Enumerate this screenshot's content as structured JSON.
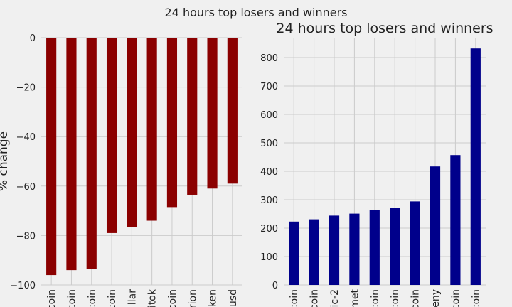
{
  "figure": {
    "suptitle": "24 hours top losers and winners"
  },
  "chart_data": [
    {
      "type": "bar",
      "title": "",
      "xlabel": "",
      "ylabel": "% change",
      "ylim": [
        -100,
        0
      ],
      "yticks": [
        0,
        -20,
        -40,
        -60,
        -80,
        -100
      ],
      "tick_labels": [
        "−100",
        "−80",
        "−60",
        "−40",
        "−20",
        "0"
      ],
      "categories": [
        "coin",
        "coin",
        "coin",
        "coin",
        "llar",
        "itok",
        "coin",
        "rion",
        "ken",
        "usd"
      ],
      "values": [
        -96,
        -94,
        -93.5,
        -79,
        -76.5,
        -74,
        -68.5,
        -63.5,
        -61,
        -59
      ],
      "color": "#8b0000",
      "grid": true
    },
    {
      "type": "bar",
      "title": "24 hours top losers and winners",
      "xlabel": "",
      "ylabel": "",
      "ylim": [
        0,
        870
      ],
      "yticks": [
        0,
        100,
        200,
        300,
        400,
        500,
        600,
        700,
        800
      ],
      "categories": [
        "coin",
        "coin",
        "ic-2",
        "met",
        "coin",
        "coin",
        "coin",
        "eny",
        "coin",
        "coin"
      ],
      "values": [
        223,
        231,
        244,
        251,
        265,
        270,
        294,
        417,
        457,
        832
      ],
      "color": "#00008b",
      "grid": true
    }
  ]
}
